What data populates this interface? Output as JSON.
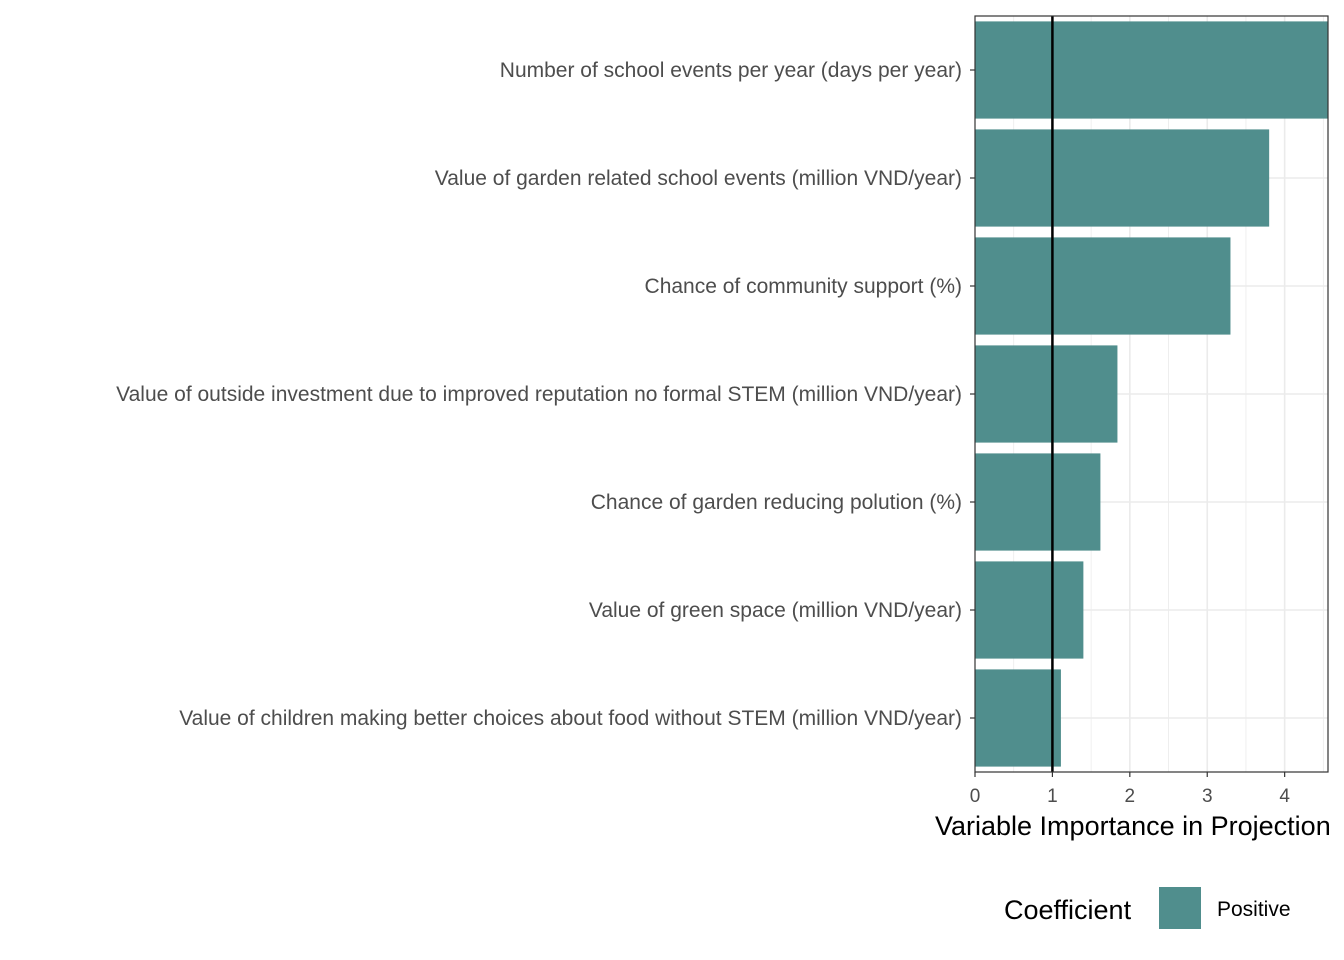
{
  "chart_data": {
    "type": "bar",
    "orientation": "horizontal",
    "categories": [
      "Number of school events per year (days per year)",
      "Value of garden related school events (million VND/year)",
      "Chance of community support (%)",
      "Value of outside investment due to improved reputation no formal STEM (million VND/year)",
      "Chance of garden reducing polution (%)",
      "Value of green space (million VND/year)",
      "Value of children making better choices about food without STEM (million VND/year)"
    ],
    "values": [
      4.56,
      3.8,
      3.3,
      1.84,
      1.62,
      1.4,
      1.11
    ],
    "xlabel": "Variable Importance in Projection",
    "ylabel": "",
    "xlim": [
      0,
      4.56
    ],
    "xticks": [
      "0",
      "1",
      "2",
      "3",
      "4"
    ],
    "reference_line": 1,
    "grid": true,
    "bar_color": "#508E8D",
    "legend": {
      "title": "Coefficient",
      "position": "bottom",
      "entries": [
        {
          "label": "Positive",
          "color": "#508E8D"
        }
      ]
    }
  }
}
